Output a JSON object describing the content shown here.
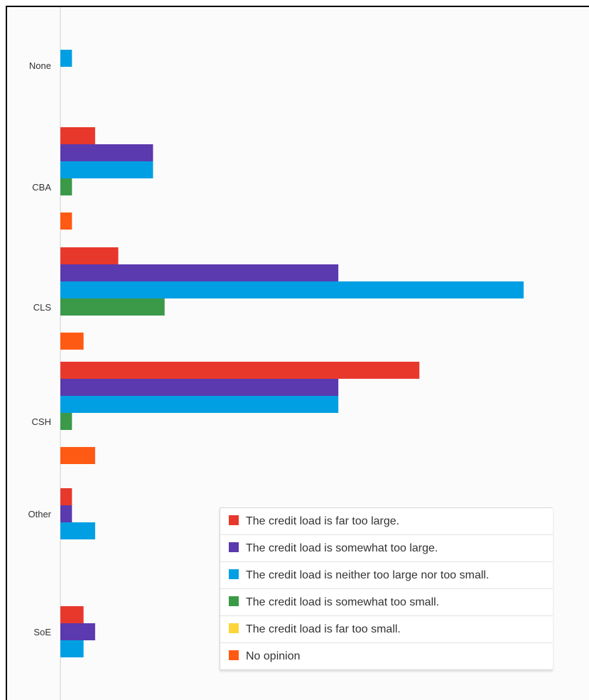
{
  "chart_data": {
    "type": "bar",
    "orientation": "horizontal",
    "categories": [
      "None",
      "CBA",
      "CLS",
      "CSH",
      "Other",
      "SoE"
    ],
    "series": [
      {
        "name": "The credit load is far too large.",
        "color": "#e8382c",
        "values": [
          0,
          3,
          5,
          31,
          1,
          2
        ]
      },
      {
        "name": "The credit load is somewhat too large.",
        "color": "#5b39ae",
        "values": [
          0,
          8,
          24,
          24,
          1,
          3
        ]
      },
      {
        "name": "The credit load is neither too large nor too small.",
        "color": "#009fe3",
        "values": [
          1,
          8,
          40,
          24,
          3,
          2
        ]
      },
      {
        "name": "The credit load is somewhat too small.",
        "color": "#3a9a47",
        "values": [
          0,
          1,
          9,
          1,
          0,
          0
        ]
      },
      {
        "name": "The credit load is far too small.",
        "color": "#fcd43c",
        "values": [
          0,
          0,
          0,
          0,
          0,
          0
        ]
      },
      {
        "name": "No opinion",
        "color": "#ff5a14",
        "values": [
          0,
          1,
          2,
          3,
          0,
          0
        ]
      }
    ],
    "title": "",
    "xlabel": "",
    "ylabel": "",
    "xlim": [
      0,
      45
    ],
    "grid": false,
    "legend": "bottom-right"
  }
}
